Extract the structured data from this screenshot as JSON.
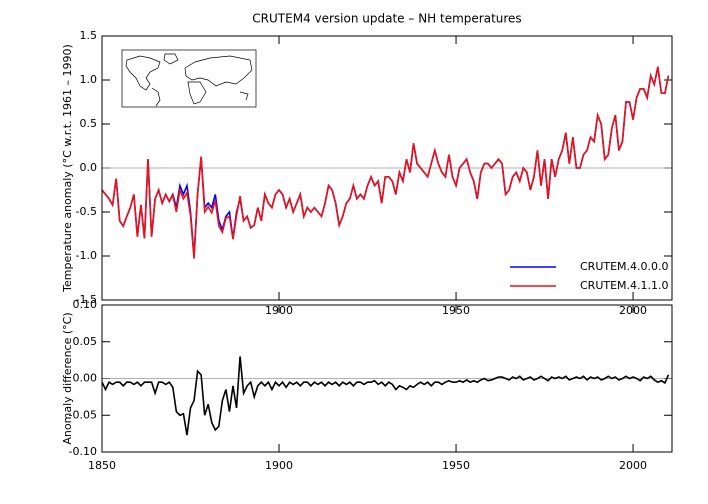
{
  "chart_data": [
    {
      "type": "line",
      "title": "CRUTEM4 version update – NH temperatures",
      "ylabel": "Temperature anomaly (°C w.r.t. 1961 – 1990)",
      "x": [
        1850,
        1851,
        1852,
        1853,
        1854,
        1855,
        1856,
        1857,
        1858,
        1859,
        1860,
        1861,
        1862,
        1863,
        1864,
        1865,
        1866,
        1867,
        1868,
        1869,
        1870,
        1871,
        1872,
        1873,
        1874,
        1875,
        1876,
        1877,
        1878,
        1879,
        1880,
        1881,
        1882,
        1883,
        1884,
        1885,
        1886,
        1887,
        1888,
        1889,
        1890,
        1891,
        1892,
        1893,
        1894,
        1895,
        1896,
        1897,
        1898,
        1899,
        1900,
        1901,
        1902,
        1903,
        1904,
        1905,
        1906,
        1907,
        1908,
        1909,
        1910,
        1911,
        1912,
        1913,
        1914,
        1915,
        1916,
        1917,
        1918,
        1919,
        1920,
        1921,
        1922,
        1923,
        1924,
        1925,
        1926,
        1927,
        1928,
        1929,
        1930,
        1931,
        1932,
        1933,
        1934,
        1935,
        1936,
        1937,
        1938,
        1939,
        1940,
        1941,
        1942,
        1943,
        1944,
        1945,
        1946,
        1947,
        1948,
        1949,
        1950,
        1951,
        1952,
        1953,
        1954,
        1955,
        1956,
        1957,
        1958,
        1959,
        1960,
        1961,
        1962,
        1963,
        1964,
        1965,
        1966,
        1967,
        1968,
        1969,
        1970,
        1971,
        1972,
        1973,
        1974,
        1975,
        1976,
        1977,
        1978,
        1979,
        1980,
        1981,
        1982,
        1983,
        1984,
        1985,
        1986,
        1987,
        1988,
        1989,
        1990,
        1991,
        1992,
        1993,
        1994,
        1995,
        1996,
        1997,
        1998,
        1999,
        2000,
        2001,
        2002,
        2003,
        2004,
        2005,
        2006,
        2007,
        2008,
        2009,
        2010
      ],
      "series": [
        {
          "name": "CRUTEM.4.0.0.0",
          "color": "#0000ff",
          "values": [
            -0.25,
            -0.3,
            -0.35,
            -0.42,
            -0.12,
            -0.6,
            -0.66,
            -0.55,
            -0.45,
            -0.3,
            -0.78,
            -0.42,
            -0.8,
            0.1,
            -0.78,
            -0.35,
            -0.25,
            -0.4,
            -0.3,
            -0.38,
            -0.3,
            -0.45,
            -0.2,
            -0.3,
            -0.2,
            -0.5,
            -1.0,
            -0.3,
            0.12,
            -0.45,
            -0.4,
            -0.45,
            -0.3,
            -0.6,
            -0.7,
            -0.55,
            -0.5,
            -0.8,
            -0.5,
            -0.35,
            -0.6,
            -0.55,
            -0.68,
            -0.65,
            -0.45,
            -0.6,
            -0.3,
            -0.4,
            -0.45,
            -0.3,
            -0.25,
            -0.3,
            -0.45,
            -0.35,
            -0.5,
            -0.4,
            -0.3,
            -0.55,
            -0.45,
            -0.5,
            -0.45,
            -0.5,
            -0.55,
            -0.4,
            -0.2,
            -0.25,
            -0.4,
            -0.65,
            -0.55,
            -0.4,
            -0.35,
            -0.2,
            -0.35,
            -0.3,
            -0.35,
            -0.2,
            -0.1,
            -0.2,
            -0.15,
            -0.4,
            -0.1,
            -0.1,
            -0.15,
            -0.3,
            -0.05,
            -0.15,
            0.1,
            -0.05,
            0.28,
            0.05,
            0.0,
            -0.05,
            -0.1,
            0.05,
            0.2,
            0.05,
            -0.05,
            -0.1,
            0.15,
            -0.1,
            -0.2,
            0.0,
            0.05,
            0.1,
            -0.05,
            -0.15,
            -0.35,
            -0.05,
            0.05,
            0.05,
            0.0,
            0.05,
            0.1,
            0.05,
            -0.3,
            -0.25,
            -0.1,
            -0.05,
            -0.15,
            0.0,
            -0.05,
            -0.25,
            -0.1,
            0.2,
            -0.2,
            0.1,
            -0.35,
            0.1,
            -0.1,
            0.1,
            0.2,
            0.4,
            0.05,
            0.35,
            0.0,
            0.0,
            0.15,
            0.2,
            0.35,
            0.3,
            0.6,
            0.5,
            0.1,
            0.15,
            0.45,
            0.6,
            0.2,
            0.3,
            0.75,
            0.75,
            0.55,
            0.8,
            0.9,
            0.9,
            0.8,
            1.05,
            0.95,
            1.15,
            0.85,
            0.85,
            1.05
          ]
        },
        {
          "name": "CRUTEM.4.1.1.0",
          "color": "#ee1111",
          "values": [
            -0.25,
            -0.3,
            -0.35,
            -0.42,
            -0.12,
            -0.6,
            -0.66,
            -0.55,
            -0.45,
            -0.3,
            -0.78,
            -0.42,
            -0.8,
            0.1,
            -0.78,
            -0.35,
            -0.25,
            -0.4,
            -0.3,
            -0.38,
            -0.31,
            -0.5,
            -0.25,
            -0.35,
            -0.28,
            -0.54,
            -1.03,
            -0.29,
            0.13,
            -0.5,
            -0.44,
            -0.51,
            -0.37,
            -0.66,
            -0.73,
            -0.57,
            -0.55,
            -0.81,
            -0.54,
            -0.32,
            -0.6,
            -0.55,
            -0.68,
            -0.65,
            -0.45,
            -0.6,
            -0.3,
            -0.4,
            -0.45,
            -0.3,
            -0.25,
            -0.3,
            -0.45,
            -0.35,
            -0.5,
            -0.4,
            -0.3,
            -0.55,
            -0.45,
            -0.5,
            -0.45,
            -0.5,
            -0.55,
            -0.4,
            -0.2,
            -0.25,
            -0.4,
            -0.65,
            -0.55,
            -0.4,
            -0.35,
            -0.2,
            -0.35,
            -0.3,
            -0.35,
            -0.2,
            -0.1,
            -0.2,
            -0.15,
            -0.4,
            -0.1,
            -0.1,
            -0.15,
            -0.3,
            -0.05,
            -0.15,
            0.1,
            -0.05,
            0.28,
            0.05,
            0.0,
            -0.05,
            -0.1,
            0.05,
            0.2,
            0.05,
            -0.05,
            -0.1,
            0.15,
            -0.1,
            -0.2,
            0.0,
            0.05,
            0.1,
            -0.05,
            -0.15,
            -0.35,
            -0.05,
            0.05,
            0.05,
            0.0,
            0.05,
            0.1,
            0.05,
            -0.3,
            -0.25,
            -0.1,
            -0.05,
            -0.15,
            0.0,
            -0.05,
            -0.25,
            -0.1,
            0.2,
            -0.2,
            0.1,
            -0.35,
            0.1,
            -0.1,
            0.1,
            0.2,
            0.4,
            0.05,
            0.35,
            0.0,
            0.0,
            0.15,
            0.2,
            0.35,
            0.3,
            0.6,
            0.5,
            0.1,
            0.15,
            0.45,
            0.6,
            0.2,
            0.3,
            0.75,
            0.75,
            0.55,
            0.8,
            0.9,
            0.9,
            0.8,
            1.05,
            0.95,
            1.15,
            0.85,
            0.85,
            1.05
          ]
        }
      ],
      "xlim": [
        1850,
        2011
      ],
      "xticks": [
        1900,
        1950,
        2000
      ],
      "ylim": [
        -1.5,
        1.5
      ],
      "yticks": [
        -1.5,
        -0.5,
        {
          "value": -1.0,
          "label": "-1.0"
        },
        {
          "value": 0.0,
          "label": "0.0"
        },
        0.5,
        {
          "value": 1.0,
          "label": "1.0"
        },
        1.5
      ],
      "legend": "lower right"
    },
    {
      "type": "line",
      "ylabel": "Anomaly difference (°C)",
      "x": [
        1850,
        1851,
        1852,
        1853,
        1854,
        1855,
        1856,
        1857,
        1858,
        1859,
        1860,
        1861,
        1862,
        1863,
        1864,
        1865,
        1866,
        1867,
        1868,
        1869,
        1870,
        1871,
        1872,
        1873,
        1874,
        1875,
        1876,
        1877,
        1878,
        1879,
        1880,
        1881,
        1882,
        1883,
        1884,
        1885,
        1886,
        1887,
        1888,
        1889,
        1890,
        1891,
        1892,
        1893,
        1894,
        1895,
        1896,
        1897,
        1898,
        1899,
        1900,
        1901,
        1902,
        1903,
        1904,
        1905,
        1906,
        1907,
        1908,
        1909,
        1910,
        1911,
        1912,
        1913,
        1914,
        1915,
        1916,
        1917,
        1918,
        1919,
        1920,
        1921,
        1922,
        1923,
        1924,
        1925,
        1926,
        1927,
        1928,
        1929,
        1930,
        1931,
        1932,
        1933,
        1934,
        1935,
        1936,
        1937,
        1938,
        1939,
        1940,
        1941,
        1942,
        1943,
        1944,
        1945,
        1946,
        1947,
        1948,
        1949,
        1950,
        1951,
        1952,
        1953,
        1954,
        1955,
        1956,
        1957,
        1958,
        1959,
        1960,
        1961,
        1962,
        1963,
        1964,
        1965,
        1966,
        1967,
        1968,
        1969,
        1970,
        1971,
        1972,
        1973,
        1974,
        1975,
        1976,
        1977,
        1978,
        1979,
        1980,
        1981,
        1982,
        1983,
        1984,
        1985,
        1986,
        1987,
        1988,
        1989,
        1990,
        1991,
        1992,
        1993,
        1994,
        1995,
        1996,
        1997,
        1998,
        1999,
        2000,
        2001,
        2002,
        2003,
        2004,
        2005,
        2006,
        2007,
        2008,
        2009,
        2010
      ],
      "series": [
        {
          "color": "#000000",
          "values": [
            -0.005,
            -0.015,
            -0.005,
            -0.008,
            -0.005,
            -0.005,
            -0.01,
            -0.005,
            -0.005,
            -0.008,
            -0.005,
            -0.01,
            -0.005,
            -0.005,
            -0.005,
            -0.02,
            -0.005,
            -0.005,
            -0.008,
            -0.005,
            -0.012,
            -0.045,
            -0.05,
            -0.048,
            -0.077,
            -0.04,
            -0.03,
            0.01,
            0.005,
            -0.05,
            -0.035,
            -0.06,
            -0.07,
            -0.065,
            -0.03,
            -0.015,
            -0.045,
            -0.01,
            -0.04,
            0.03,
            -0.02,
            -0.01,
            -0.005,
            -0.025,
            -0.01,
            -0.005,
            -0.01,
            -0.005,
            -0.015,
            -0.005,
            -0.01,
            -0.005,
            -0.012,
            -0.005,
            -0.008,
            -0.005,
            -0.01,
            -0.005,
            -0.005,
            -0.01,
            -0.005,
            -0.008,
            -0.005,
            -0.01,
            -0.005,
            -0.008,
            -0.005,
            -0.01,
            -0.005,
            -0.008,
            -0.005,
            -0.01,
            -0.005,
            -0.005,
            -0.008,
            -0.005,
            -0.005,
            -0.003,
            -0.008,
            -0.005,
            -0.01,
            -0.005,
            -0.008,
            -0.015,
            -0.01,
            -0.012,
            -0.015,
            -0.01,
            -0.012,
            -0.008,
            -0.005,
            -0.008,
            -0.005,
            -0.01,
            -0.005,
            -0.005,
            -0.008,
            -0.005,
            -0.003,
            -0.005,
            -0.005,
            -0.003,
            -0.005,
            -0.002,
            -0.005,
            -0.003,
            -0.005,
            -0.002,
            0.0,
            -0.003,
            -0.002,
            0.0,
            0.002,
            0.002,
            0.0,
            -0.002,
            0.002,
            0.0,
            0.003,
            -0.002,
            0.0,
            0.002,
            -0.002,
            0.0,
            0.003,
            0.0,
            -0.003,
            0.002,
            0.0,
            0.002,
            0.0,
            0.003,
            -0.002,
            0.0,
            0.002,
            0.0,
            0.003,
            -0.002,
            0.002,
            0.0,
            0.002,
            -0.002,
            0.0,
            0.003,
            0.0,
            0.002,
            -0.002,
            0.0,
            0.003,
            0.0,
            0.002,
            0.0,
            -0.003,
            0.002,
            0.0,
            0.003,
            -0.002,
            -0.005,
            -0.003,
            -0.006,
            0.005
          ]
        }
      ],
      "xlim": [
        1850,
        2011
      ],
      "xticks": [
        1850,
        1900,
        1950,
        2000
      ],
      "ylim": [
        -0.1,
        0.1
      ],
      "yticks": [
        {
          "value": -0.1,
          "label": "-0.10"
        },
        -0.05,
        {
          "value": 0.0,
          "label": "0.00"
        },
        0.05,
        {
          "value": 0.1,
          "label": "0.10"
        }
      ]
    }
  ]
}
